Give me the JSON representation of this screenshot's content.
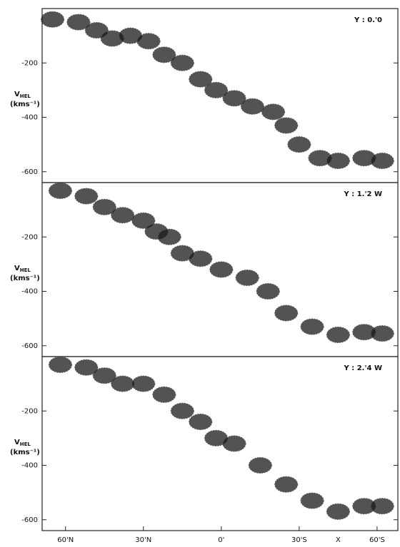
{
  "chart_data": [
    {
      "type": "scatter",
      "title": "Y : 0.'0",
      "x": [
        65,
        55,
        48,
        42,
        35,
        28,
        22,
        15,
        8,
        2,
        -5,
        -12,
        -20,
        -25,
        -30,
        -38,
        -45,
        -55,
        -62
      ],
      "y": [
        -40,
        -50,
        -80,
        -110,
        -100,
        -120,
        -170,
        -200,
        -260,
        -300,
        -330,
        -360,
        -380,
        -430,
        -500,
        -550,
        -560,
        -550,
        -560
      ],
      "color": "#1a1a1a",
      "xlim": [
        69,
        -68
      ],
      "ylim": [
        -640,
        0
      ],
      "yticks": [
        -200,
        -400,
        -600
      ],
      "ylabel": "V",
      "ylabel_sub": "HEL",
      "ylabel_unit": "(kms⁻¹)"
    },
    {
      "type": "scatter",
      "title": "Y : 1.'2 W",
      "x": [
        62,
        52,
        45,
        38,
        30,
        25,
        20,
        15,
        8,
        0,
        -10,
        -18,
        -25,
        -35,
        -45,
        -55,
        -62
      ],
      "y": [
        -30,
        -50,
        -90,
        -120,
        -140,
        -180,
        -200,
        -260,
        -280,
        -320,
        -350,
        -400,
        -480,
        -530,
        -560,
        -550,
        -555
      ],
      "color": "#1a1a1a",
      "xlim": [
        69,
        -68
      ],
      "ylim": [
        -640,
        0
      ],
      "yticks": [
        -200,
        -400,
        -600
      ],
      "ylabel": "V",
      "ylabel_sub": "HEL",
      "ylabel_unit": "(kms⁻¹)"
    },
    {
      "type": "scatter",
      "title": "Y : 2.'4 W",
      "x": [
        62,
        52,
        45,
        38,
        30,
        22,
        15,
        8,
        2,
        -5,
        -15,
        -25,
        -35,
        -45,
        -55,
        -62
      ],
      "y": [
        -30,
        -40,
        -70,
        -100,
        -100,
        -140,
        -200,
        -240,
        -300,
        -320,
        -400,
        -470,
        -530,
        -570,
        -550,
        -550
      ],
      "color": "#1a1a1a",
      "xlim": [
        69,
        -68
      ],
      "ylim": [
        -640,
        0
      ],
      "yticks": [
        -200,
        -400,
        -600
      ],
      "ylabel": "V",
      "ylabel_sub": "HEL",
      "ylabel_unit": "(kms⁻¹)",
      "xlabel": "X",
      "xticks": [
        {
          "value": 60,
          "label": "60'N"
        },
        {
          "value": 30,
          "label": "30'N"
        },
        {
          "value": 0,
          "label": "0'"
        },
        {
          "value": -30,
          "label": "30'S"
        },
        {
          "value": -60,
          "label": "60'S"
        }
      ]
    }
  ]
}
